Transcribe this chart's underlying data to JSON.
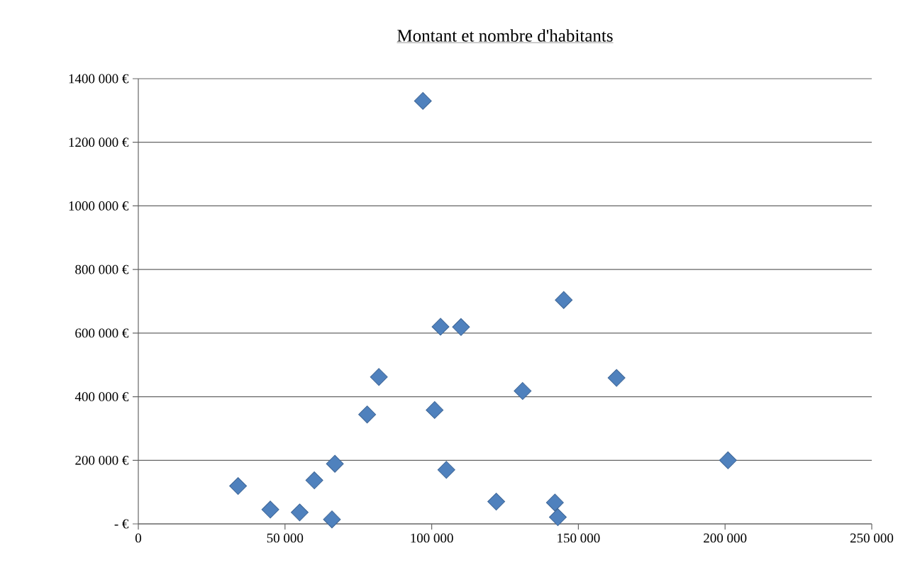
{
  "chart_data": {
    "type": "scatter",
    "title": "Montant et nombre d'habitants",
    "x": [
      34000,
      45000,
      55000,
      60000,
      66000,
      67000,
      78000,
      82000,
      97000,
      101000,
      103000,
      105000,
      110000,
      122000,
      131000,
      142000,
      143000,
      145000,
      163000,
      201000
    ],
    "values": [
      119000,
      45000,
      36000,
      137000,
      14000,
      189000,
      344000,
      462000,
      1330000,
      358000,
      620000,
      170000,
      619000,
      70000,
      418000,
      67000,
      21000,
      704000,
      459000,
      200000
    ],
    "color": "#4f81bd",
    "marker": "diamond",
    "xlim": [
      0,
      250000
    ],
    "ylim": [
      0,
      1400000
    ],
    "xticks": [
      0,
      {
        "value": 50000,
        "label": "50 000"
      },
      {
        "value": 100000,
        "label": "100 000"
      },
      {
        "value": 150000,
        "label": "150 000"
      },
      {
        "value": 200000,
        "label": "200 000"
      },
      {
        "value": 250000,
        "label": "250 000"
      }
    ],
    "yticks": [
      {
        "value": 0,
        "label": "- €"
      },
      {
        "value": 200000,
        "label": "200 000 €"
      },
      {
        "value": 400000,
        "label": "400 000 €"
      },
      {
        "value": 600000,
        "label": "600 000 €"
      },
      {
        "value": 800000,
        "label": "800 000 €"
      },
      {
        "value": 1000000,
        "label": "1000 000 €"
      },
      {
        "value": 1200000,
        "label": "1200 000 €"
      },
      {
        "value": 1400000,
        "label": "1400 000 €"
      }
    ],
    "grid": "y"
  }
}
